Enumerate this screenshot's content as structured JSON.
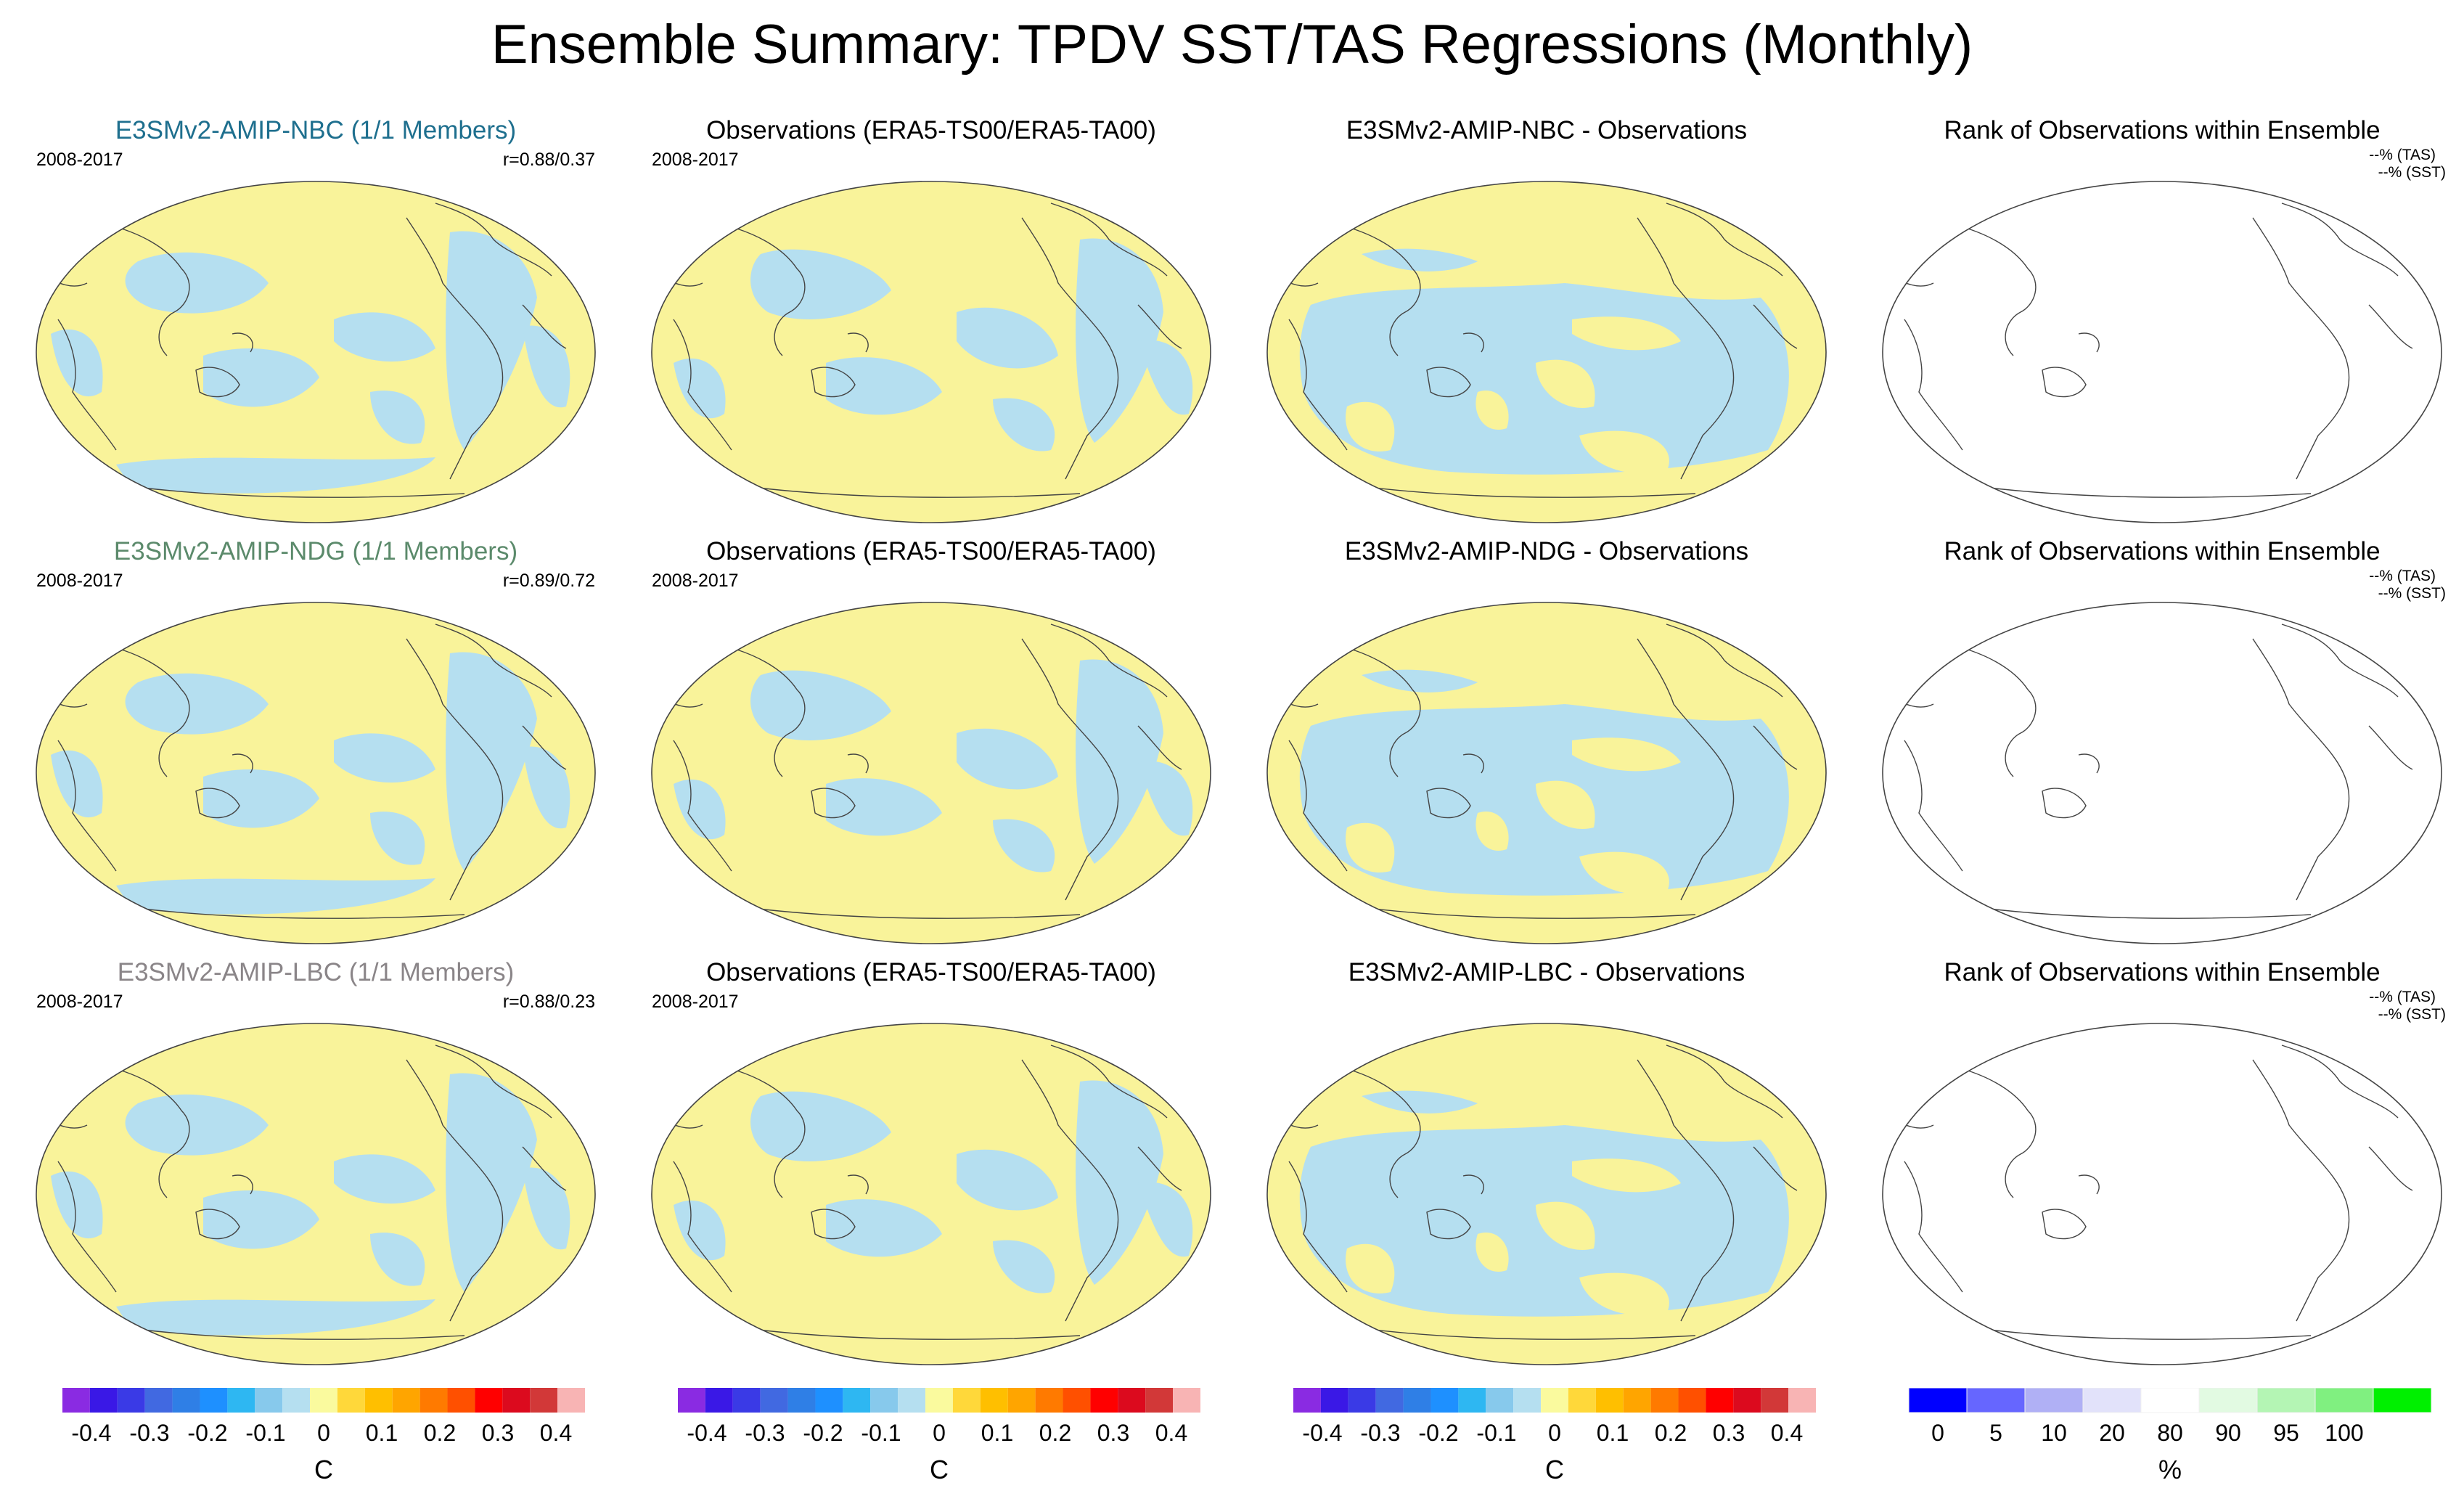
{
  "title": "Ensemble Summary: TPDV SST/TAS Regressions (Monthly)",
  "rows": [
    {
      "model": {
        "title": "E3SMv2-AMIP-NBC (1/1 Members)",
        "color": "#1e6f8e",
        "period": "2008-2017",
        "corr": "r=0.88/0.37"
      },
      "obs": {
        "title": "Observations (ERA5-TS00/ERA5-TA00)",
        "period": "2008-2017"
      },
      "diff": {
        "title": "E3SMv2-AMIP-NBC - Observations"
      },
      "rank": {
        "title": "Rank of Observations within Ensemble",
        "tas": "--% (TAS)",
        "sst": "--% (SST)"
      }
    },
    {
      "model": {
        "title": "E3SMv2-AMIP-NDG (1/1 Members)",
        "color": "#5b8a6b",
        "period": "2008-2017",
        "corr": "r=0.89/0.72"
      },
      "obs": {
        "title": "Observations (ERA5-TS00/ERA5-TA00)",
        "period": "2008-2017"
      },
      "diff": {
        "title": "E3SMv2-AMIP-NDG - Observations"
      },
      "rank": {
        "title": "Rank of Observations within Ensemble",
        "tas": "--% (TAS)",
        "sst": "--% (SST)"
      }
    },
    {
      "model": {
        "title": "E3SMv2-AMIP-LBC (1/1 Members)",
        "color": "#8a8588",
        "period": "2008-2017",
        "corr": "r=0.88/0.23"
      },
      "obs": {
        "title": "Observations (ERA5-TS00/ERA5-TA00)",
        "period": "2008-2017"
      },
      "diff": {
        "title": "E3SMv2-AMIP-LBC - Observations"
      },
      "rank": {
        "title": "Rank of Observations within Ensemble",
        "tas": "--% (TAS)",
        "sst": "--% (SST)"
      }
    }
  ],
  "chart_data": {
    "type": "heatmap",
    "projection": "Robinson (Pacific-centered global maps)",
    "map_colors": {
      "positive_small": "#f9f39a",
      "negative_small": "#b5dff0",
      "land_outline": "#444444",
      "rank_background": "#ffffff"
    },
    "colorbar_regression": {
      "colors": [
        "#8a2be2",
        "#3a18e6",
        "#3a3ae6",
        "#4169e1",
        "#2f7fe6",
        "#1e90ff",
        "#2eb7f2",
        "#87c9ec",
        "#b5dff0",
        "#fafa9e",
        "#ffd83a",
        "#ffbf00",
        "#ffa500",
        "#ff7a00",
        "#ff5000",
        "#ff0000",
        "#dc0a1e",
        "#d23838",
        "#f8b4b4"
      ],
      "tick_labels": [
        "-0.4",
        "-0.3",
        "-0.2",
        "-0.1",
        "0",
        "0.1",
        "0.2",
        "0.3",
        "0.4"
      ],
      "range": [
        -0.45,
        0.45
      ],
      "unit": "C"
    },
    "colorbar_rank": {
      "colors": [
        "#0000ff",
        "#6666ff",
        "#b0b0f5",
        "#e2e2fa",
        "#ffffff",
        "#e2fae2",
        "#b4f5b4",
        "#80f080",
        "#00f000"
      ],
      "boundaries": [
        0,
        5,
        10,
        20,
        80,
        90,
        95,
        100
      ],
      "tick_labels": [
        "0",
        "5",
        "10",
        "20",
        "80",
        "90",
        "95",
        "100"
      ],
      "unit": "%"
    }
  }
}
